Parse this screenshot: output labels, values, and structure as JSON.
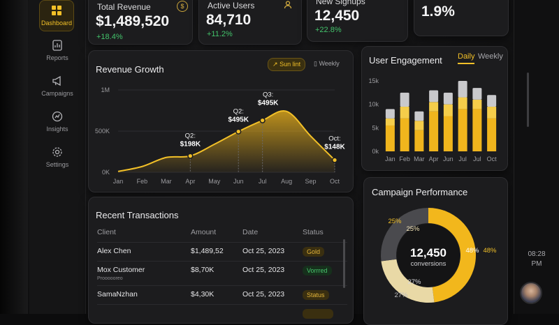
{
  "sidebar": {
    "items": [
      {
        "label": "Dashboard",
        "icon": "dashboard-icon",
        "active": true
      },
      {
        "label": "Reports",
        "icon": "reports-icon"
      },
      {
        "label": "Campaigns",
        "icon": "megaphone-icon"
      },
      {
        "label": "Insights",
        "icon": "insights-icon"
      },
      {
        "label": "Settings",
        "icon": "gear-icon"
      }
    ]
  },
  "kpis": [
    {
      "label": "Total Revenue",
      "value": "$1,489,520",
      "delta": "+18.4%",
      "icon": "dollar-icon"
    },
    {
      "label": "Active Users",
      "value": "84,710",
      "delta": "+11.2%",
      "icon": "users-icon"
    },
    {
      "label": "New Signups",
      "value": "12,450",
      "delta": "+22.8%"
    },
    {
      "label": "",
      "value": "1.9%"
    }
  ],
  "revenue": {
    "title": "Revenue Growth",
    "toggle_active": "Sun lint",
    "toggle_inactive": "Weekly",
    "annotations": [
      {
        "label": "Q2:",
        "value": "$198K"
      },
      {
        "label": "Q2:",
        "value": "$495K"
      },
      {
        "label": "Q3:",
        "value": "$495K"
      },
      {
        "label": "Oct:",
        "value": "$148K"
      }
    ]
  },
  "engagement": {
    "title": "User Engagement",
    "tab_daily": "Daily",
    "tab_weekly": "Weekly"
  },
  "transactions": {
    "title": "Recent Transactions",
    "headers": [
      "Client",
      "Amount",
      "Date",
      "Status"
    ],
    "rows": [
      {
        "client": "Alex Chen",
        "sub": "",
        "amount": "$1,489,52",
        "date": "Oct 25, 2023",
        "status": "Gold",
        "status_color": "gold"
      },
      {
        "client": "Mox Customer",
        "sub": "Proooooreo",
        "amount": "$8,70K",
        "date": "Oct 25, 2023",
        "status": "Vorrred",
        "status_color": "green"
      },
      {
        "client": "SamaNzhan",
        "sub": "",
        "amount": "$4,30K",
        "date": "Oct 25, 2023",
        "status": "Status",
        "status_color": "gold"
      },
      {
        "client": "",
        "sub": "",
        "amount": "",
        "date": "",
        "status": "",
        "status_color": "gold"
      }
    ]
  },
  "campaign": {
    "title": "Campaign Performance",
    "center_value": "12,450",
    "center_label": "conversions",
    "labels": {
      "top_left": "25%",
      "inner_top_left": "25%",
      "inner_right": "48%",
      "outer_right": "48%",
      "inner_bottom_left": "27%",
      "outer_bottom_left": "27%"
    }
  },
  "clock": {
    "time": "08:28",
    "ampm": "PM"
  },
  "colors": {
    "accent": "#f2c028",
    "positive": "#43c36b",
    "card": "#1c1c1e"
  },
  "chart_data": [
    {
      "type": "area",
      "title": "Revenue Growth",
      "categories": [
        "Jan",
        "Feb",
        "Mar",
        "Apr",
        "May",
        "Jun",
        "Jul",
        "Aug",
        "Sep",
        "Oct"
      ],
      "values": [
        10000,
        70000,
        180000,
        198000,
        340000,
        495000,
        630000,
        740000,
        440000,
        148000
      ],
      "yticks": [
        "1M",
        "500K",
        "0K"
      ],
      "ylim": [
        0,
        1000000
      ],
      "grid": true
    },
    {
      "type": "bar",
      "title": "User Engagement",
      "categories": [
        "Jan",
        "Feb",
        "Mar",
        "Apr",
        "Jun",
        "Jul",
        "Jul",
        "Oct"
      ],
      "yticks": [
        "15k",
        "10k",
        "5k",
        "0k"
      ],
      "ylim": [
        0,
        15000
      ],
      "series": [
        {
          "name": "",
          "values": [
            5500,
            7000,
            4500,
            8500,
            7500,
            9000,
            9000,
            7000
          ]
        },
        {
          "name": "",
          "values": [
            1500,
            2500,
            2000,
            2000,
            2500,
            2500,
            2000,
            2500
          ]
        },
        {
          "name": "",
          "values": [
            2000,
            3000,
            2000,
            2500,
            2500,
            3500,
            2500,
            2500
          ]
        }
      ]
    },
    {
      "type": "pie",
      "title": "Campaign Performance",
      "categories": [
        "gold",
        "gray-light",
        "gray-dark"
      ],
      "values": [
        48,
        25,
        27
      ]
    }
  ]
}
